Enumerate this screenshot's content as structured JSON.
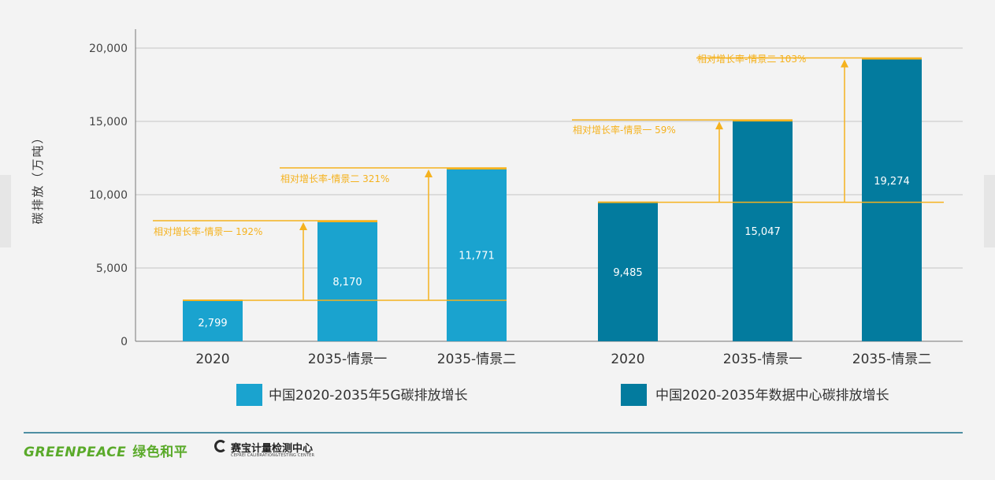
{
  "chart_data": {
    "type": "bar",
    "title": "",
    "ylabel": "碳排放（万吨）",
    "xlabel": "",
    "ylim": [
      0,
      20000
    ],
    "yticks": [
      0,
      5000,
      10000,
      15000,
      20000
    ],
    "ytick_labels": [
      "0",
      "5,000",
      "10,000",
      "15,000",
      "20,000"
    ],
    "grid": "horizontal",
    "legend_position": "bottom",
    "groups": [
      {
        "name": "中国2020-2035年5G碳排放增长",
        "color": "#1aa3cf",
        "categories": [
          "2020",
          "2035-情景一",
          "2035-情景二"
        ],
        "values": [
          2799,
          8170,
          11771
        ],
        "value_labels": [
          "2,799",
          "8,170",
          "11,771"
        ],
        "annotations": [
          {
            "text": "相对增长率-情景一  192%",
            "from": 2799,
            "to": 8170
          },
          {
            "text": "相对增长率-情景二  321%",
            "from": 2799,
            "to": 11771
          }
        ]
      },
      {
        "name": "中国2020-2035年数据中心碳排放增长",
        "color": "#037b9e",
        "categories": [
          "2020",
          "2035-情景一",
          "2035-情景二"
        ],
        "values": [
          9485,
          15047,
          19274
        ],
        "value_labels": [
          "9,485",
          "15,047",
          "19,274"
        ],
        "annotations": [
          {
            "text": "相对增长率-情景一  59%",
            "from": 9485,
            "to": 15047
          },
          {
            "text": "相对增长率-情景二  103%",
            "from": 9485,
            "to": 19274
          }
        ]
      }
    ],
    "annotation_color": "#f5b21e"
  },
  "logos": {
    "greenpeace_en": "GREENPEACE",
    "greenpeace_cn": "绿色和平",
    "ceprei_cn": "赛宝计量检测中心",
    "ceprei_en": "CEPREI CALIBRATION&TESTING CENTER"
  }
}
